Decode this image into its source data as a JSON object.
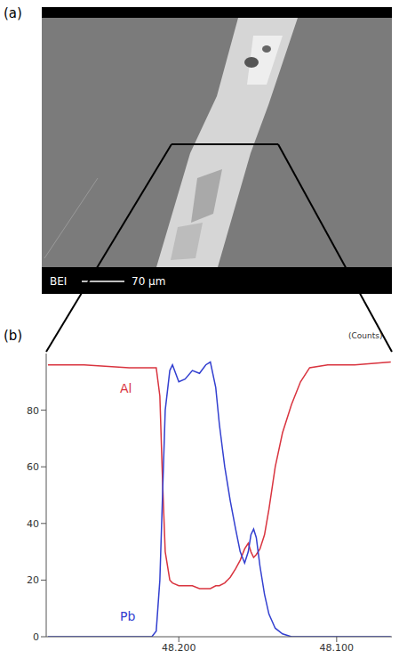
{
  "panel_a": {
    "label": "(a)",
    "detector": "BEI",
    "scale_bar": "70 μm"
  },
  "chart_data": {
    "label": "(b)",
    "type": "line",
    "unit": "(Counts)",
    "x": [
      48.2829,
      48.26,
      48.2314,
      48.2171,
      48.2143,
      48.212,
      48.2103,
      48.2086,
      48.2057,
      48.204,
      48.2,
      48.196,
      48.1914,
      48.1869,
      48.1829,
      48.18,
      48.1766,
      48.1743,
      48.1709,
      48.1674,
      48.164,
      48.1611,
      48.1583,
      48.156,
      48.1543,
      48.1526,
      48.1509,
      48.1486,
      48.1457,
      48.1429,
      48.1389,
      48.1343,
      48.1286,
      48.1229,
      48.1171,
      48.1057,
      48.0886,
      48.0657
    ],
    "xlim": [
      48.284,
      48.065
    ],
    "xticks": [
      {
        "value": 48.2,
        "label": "48.200"
      },
      {
        "value": 48.1,
        "label": "48.100"
      }
    ],
    "ylim": [
      0,
      100
    ],
    "yticks": [
      0,
      20,
      40,
      60,
      80
    ],
    "series": [
      {
        "name": "Al",
        "color": "#d9343f",
        "values": [
          96,
          96,
          95,
          95,
          95,
          85,
          55,
          30,
          20,
          19,
          18,
          18,
          18,
          17,
          17,
          17,
          18,
          18,
          19,
          21,
          24,
          27,
          31,
          33,
          30,
          28,
          29,
          31,
          36,
          45,
          60,
          72,
          82,
          90,
          95,
          96,
          96,
          97
        ]
      },
      {
        "name": "Pb",
        "color": "#3340d0",
        "values": [
          0,
          0,
          0,
          0,
          2,
          20,
          50,
          80,
          94,
          96,
          90,
          91,
          94,
          93,
          96,
          97,
          88,
          75,
          60,
          48,
          38,
          30,
          26,
          30,
          36,
          38,
          35,
          25,
          15,
          8,
          3,
          1,
          0,
          0,
          0,
          0,
          0,
          0
        ]
      }
    ]
  }
}
